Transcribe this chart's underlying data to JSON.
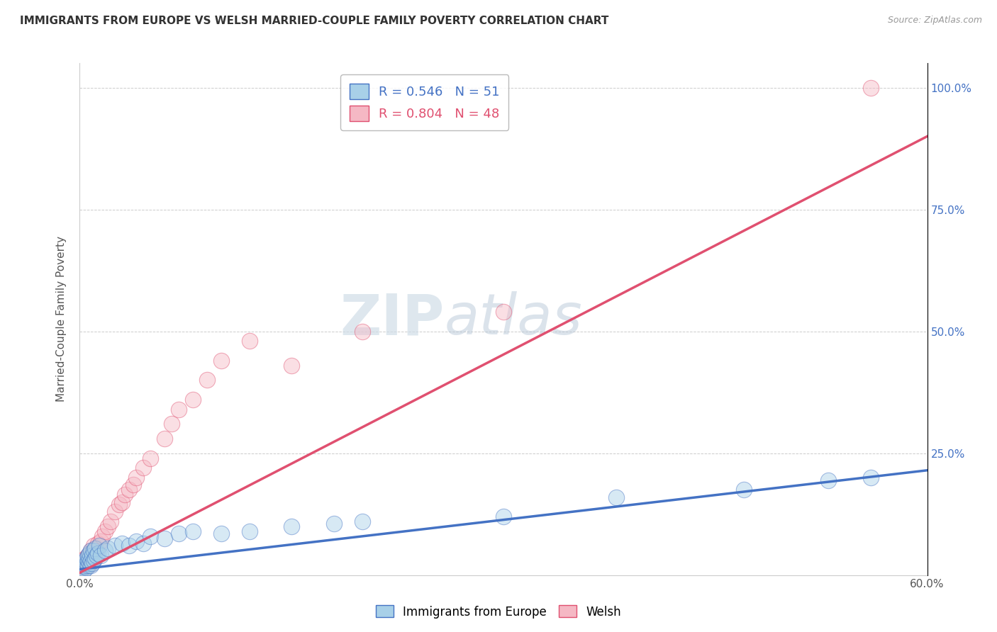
{
  "title": "IMMIGRANTS FROM EUROPE VS WELSH MARRIED-COUPLE FAMILY POVERTY CORRELATION CHART",
  "source": "Source: ZipAtlas.com",
  "ylabel": "Married-Couple Family Poverty",
  "xlim": [
    0.0,
    0.6
  ],
  "ylim": [
    0.0,
    1.05
  ],
  "xticks": [
    0.0,
    0.1,
    0.2,
    0.3,
    0.4,
    0.5,
    0.6
  ],
  "xtick_labels": [
    "0.0%",
    "",
    "",
    "",
    "",
    "",
    "60.0%"
  ],
  "ytick_labels": [
    "",
    "25.0%",
    "50.0%",
    "75.0%",
    "100.0%"
  ],
  "yticks": [
    0.0,
    0.25,
    0.5,
    0.75,
    1.0
  ],
  "blue_color": "#a8d0e8",
  "pink_color": "#f5b8c4",
  "blue_line_color": "#4472c4",
  "pink_line_color": "#e05070",
  "blue_r": 0.546,
  "blue_n": 51,
  "pink_r": 0.804,
  "pink_n": 48,
  "blue_scatter_x": [
    0.001,
    0.001,
    0.002,
    0.002,
    0.003,
    0.003,
    0.004,
    0.004,
    0.005,
    0.005,
    0.005,
    0.006,
    0.006,
    0.006,
    0.007,
    0.007,
    0.007,
    0.008,
    0.008,
    0.008,
    0.009,
    0.009,
    0.01,
    0.01,
    0.011,
    0.011,
    0.012,
    0.013,
    0.014,
    0.015,
    0.018,
    0.02,
    0.025,
    0.03,
    0.035,
    0.04,
    0.045,
    0.05,
    0.06,
    0.07,
    0.08,
    0.1,
    0.12,
    0.15,
    0.18,
    0.2,
    0.3,
    0.38,
    0.47,
    0.53,
    0.56
  ],
  "blue_scatter_y": [
    0.01,
    0.02,
    0.015,
    0.025,
    0.01,
    0.018,
    0.02,
    0.03,
    0.015,
    0.025,
    0.035,
    0.02,
    0.03,
    0.04,
    0.025,
    0.035,
    0.045,
    0.02,
    0.03,
    0.05,
    0.025,
    0.04,
    0.03,
    0.05,
    0.035,
    0.055,
    0.04,
    0.045,
    0.06,
    0.04,
    0.05,
    0.055,
    0.06,
    0.065,
    0.06,
    0.07,
    0.065,
    0.08,
    0.075,
    0.085,
    0.09,
    0.085,
    0.09,
    0.1,
    0.105,
    0.11,
    0.12,
    0.16,
    0.175,
    0.195,
    0.2
  ],
  "pink_scatter_x": [
    0.001,
    0.001,
    0.002,
    0.002,
    0.003,
    0.003,
    0.004,
    0.004,
    0.005,
    0.005,
    0.006,
    0.006,
    0.007,
    0.007,
    0.008,
    0.008,
    0.009,
    0.009,
    0.01,
    0.01,
    0.011,
    0.012,
    0.013,
    0.015,
    0.016,
    0.018,
    0.02,
    0.022,
    0.025,
    0.028,
    0.03,
    0.032,
    0.035,
    0.038,
    0.04,
    0.045,
    0.05,
    0.06,
    0.065,
    0.07,
    0.08,
    0.09,
    0.1,
    0.12,
    0.15,
    0.2,
    0.3,
    0.56
  ],
  "pink_scatter_y": [
    0.012,
    0.022,
    0.018,
    0.03,
    0.015,
    0.025,
    0.02,
    0.035,
    0.018,
    0.03,
    0.025,
    0.04,
    0.022,
    0.038,
    0.03,
    0.05,
    0.028,
    0.048,
    0.035,
    0.06,
    0.045,
    0.055,
    0.065,
    0.07,
    0.08,
    0.09,
    0.1,
    0.11,
    0.13,
    0.145,
    0.15,
    0.165,
    0.175,
    0.185,
    0.2,
    0.22,
    0.24,
    0.28,
    0.31,
    0.34,
    0.36,
    0.4,
    0.44,
    0.48,
    0.43,
    0.5,
    0.54,
    1.0
  ],
  "blue_trend_x": [
    0.0,
    0.6
  ],
  "blue_trend_y": [
    0.012,
    0.215
  ],
  "pink_trend_x": [
    0.0,
    0.6
  ],
  "pink_trend_y": [
    0.005,
    0.9
  ],
  "background_color": "#ffffff",
  "grid_color": "#cccccc",
  "watermark_zip": "ZIP",
  "watermark_atlas": "atlas"
}
